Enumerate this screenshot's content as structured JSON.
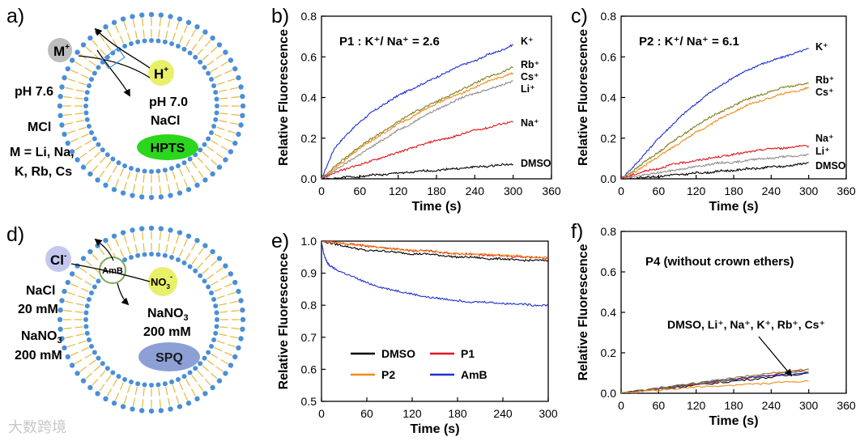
{
  "watermark": "大数跨境",
  "panel_a": {
    "letter": "a)",
    "cation": "M",
    "cation_charge": "+",
    "proton": "H",
    "proton_charge": "+",
    "outside_ph": "pH 7.6",
    "outside_salt": "MCl",
    "outside_m_line1": "M = Li, Na,",
    "outside_m_line2": "K, Rb, Cs",
    "inside_ph": "pH 7.0",
    "inside_salt": "NaCl",
    "dye": "HPTS"
  },
  "panel_d": {
    "letter": "d)",
    "anion": "Cl",
    "anion_charge": "-",
    "channel": "AmB",
    "nitrate": "NO",
    "nitrate_sub": "3",
    "nitrate_charge": "-",
    "outside_salt": "NaCl",
    "outside_conc": "20 mM",
    "outside_salt2": "NaNO",
    "outside_salt2_sub": "3",
    "outside_conc2": "200 mM",
    "inside_salt": "NaNO",
    "inside_salt_sub": "3",
    "inside_conc": "200 mM",
    "dye": "SPQ"
  },
  "chart_data": [
    {
      "panel": "b)",
      "type": "line",
      "title": "P1 : K⁺/ Na⁺ = 2.6",
      "xlabel": "Time (s)",
      "ylabel": "Relative Fluorescence",
      "xlim": [
        0,
        360
      ],
      "ylim": [
        0.0,
        0.8
      ],
      "xticks": [
        0,
        60,
        120,
        180,
        240,
        300,
        360
      ],
      "yticks": [
        0.0,
        0.2,
        0.4,
        0.6,
        0.8
      ],
      "series": [
        {
          "name": "K⁺",
          "color": "#1f2fd0",
          "x": [
            0,
            20,
            40,
            60,
            80,
            100,
            120,
            140,
            160,
            180,
            200,
            220,
            240,
            260,
            280,
            300
          ],
          "y": [
            0.0,
            0.15,
            0.22,
            0.28,
            0.33,
            0.37,
            0.41,
            0.44,
            0.47,
            0.5,
            0.53,
            0.56,
            0.58,
            0.61,
            0.63,
            0.66
          ]
        },
        {
          "name": "Rb⁺",
          "color": "#7f7f1f",
          "x": [
            0,
            20,
            40,
            60,
            80,
            100,
            120,
            140,
            160,
            180,
            200,
            220,
            240,
            260,
            280,
            300
          ],
          "y": [
            0.0,
            0.06,
            0.11,
            0.16,
            0.2,
            0.24,
            0.28,
            0.32,
            0.35,
            0.38,
            0.41,
            0.44,
            0.47,
            0.5,
            0.52,
            0.55
          ]
        },
        {
          "name": "Cs⁺",
          "color": "#f08a1a",
          "x": [
            0,
            20,
            40,
            60,
            80,
            100,
            120,
            140,
            160,
            180,
            200,
            220,
            240,
            260,
            280,
            300
          ],
          "y": [
            0.0,
            0.05,
            0.1,
            0.15,
            0.19,
            0.23,
            0.27,
            0.3,
            0.34,
            0.37,
            0.4,
            0.42,
            0.45,
            0.48,
            0.5,
            0.52
          ]
        },
        {
          "name": "Li⁺",
          "color": "#8c8c8c",
          "x": [
            0,
            20,
            40,
            60,
            80,
            100,
            120,
            140,
            160,
            180,
            200,
            220,
            240,
            260,
            280,
            300
          ],
          "y": [
            0.0,
            0.04,
            0.08,
            0.12,
            0.16,
            0.2,
            0.24,
            0.27,
            0.31,
            0.34,
            0.37,
            0.4,
            0.42,
            0.44,
            0.46,
            0.48
          ]
        },
        {
          "name": "Na⁺",
          "color": "#e0141e",
          "x": [
            0,
            20,
            40,
            60,
            80,
            100,
            120,
            140,
            160,
            180,
            200,
            220,
            240,
            260,
            280,
            300
          ],
          "y": [
            0.0,
            0.03,
            0.05,
            0.07,
            0.09,
            0.11,
            0.13,
            0.15,
            0.17,
            0.19,
            0.2,
            0.22,
            0.24,
            0.25,
            0.27,
            0.28
          ]
        },
        {
          "name": "DMSO",
          "color": "#000000",
          "x": [
            0,
            20,
            40,
            60,
            80,
            100,
            120,
            140,
            160,
            180,
            200,
            220,
            240,
            260,
            280,
            300
          ],
          "y": [
            0.0,
            0.0,
            0.01,
            0.01,
            0.02,
            0.02,
            0.03,
            0.03,
            0.04,
            0.04,
            0.05,
            0.05,
            0.06,
            0.06,
            0.07,
            0.07
          ]
        }
      ]
    },
    {
      "panel": "c)",
      "type": "line",
      "title": "P2 : K⁺/ Na⁺ = 6.1",
      "xlabel": "Time (s)",
      "ylabel": "Relative Fluorescence",
      "xlim": [
        0,
        360
      ],
      "ylim": [
        0.0,
        0.8
      ],
      "xticks": [
        0,
        60,
        120,
        180,
        240,
        300,
        360
      ],
      "yticks": [
        0.0,
        0.2,
        0.4,
        0.6,
        0.8
      ],
      "series": [
        {
          "name": "K⁺",
          "color": "#1f2fd0",
          "x": [
            0,
            20,
            40,
            60,
            80,
            100,
            120,
            140,
            160,
            180,
            200,
            220,
            240,
            260,
            280,
            300
          ],
          "y": [
            0.0,
            0.06,
            0.13,
            0.2,
            0.26,
            0.32,
            0.37,
            0.42,
            0.46,
            0.5,
            0.53,
            0.56,
            0.58,
            0.6,
            0.62,
            0.64
          ]
        },
        {
          "name": "Rb⁺",
          "color": "#7f7f1f",
          "x": [
            0,
            20,
            40,
            60,
            80,
            100,
            120,
            140,
            160,
            180,
            200,
            220,
            240,
            260,
            280,
            300
          ],
          "y": [
            0.0,
            0.04,
            0.09,
            0.13,
            0.18,
            0.22,
            0.26,
            0.3,
            0.33,
            0.36,
            0.39,
            0.41,
            0.43,
            0.45,
            0.46,
            0.47
          ]
        },
        {
          "name": "Cs⁺",
          "color": "#f08a1a",
          "x": [
            0,
            20,
            40,
            60,
            80,
            100,
            120,
            140,
            160,
            180,
            200,
            220,
            240,
            260,
            280,
            300
          ],
          "y": [
            0.0,
            0.03,
            0.07,
            0.11,
            0.15,
            0.19,
            0.23,
            0.26,
            0.3,
            0.33,
            0.36,
            0.38,
            0.4,
            0.42,
            0.43,
            0.45
          ]
        },
        {
          "name": "Na⁺",
          "color": "#e0141e",
          "x": [
            0,
            20,
            40,
            60,
            80,
            100,
            120,
            140,
            160,
            180,
            200,
            220,
            240,
            260,
            280,
            300
          ],
          "y": [
            0.0,
            0.02,
            0.04,
            0.05,
            0.07,
            0.08,
            0.09,
            0.1,
            0.11,
            0.12,
            0.13,
            0.14,
            0.15,
            0.15,
            0.16,
            0.16
          ]
        },
        {
          "name": "Li⁺",
          "color": "#8c8c8c",
          "x": [
            0,
            20,
            40,
            60,
            80,
            100,
            120,
            140,
            160,
            180,
            200,
            220,
            240,
            260,
            280,
            300
          ],
          "y": [
            0.0,
            0.01,
            0.02,
            0.03,
            0.04,
            0.05,
            0.06,
            0.07,
            0.08,
            0.08,
            0.09,
            0.1,
            0.1,
            0.11,
            0.11,
            0.12
          ]
        },
        {
          "name": "DMSO",
          "color": "#000000",
          "x": [
            0,
            20,
            40,
            60,
            80,
            100,
            120,
            140,
            160,
            180,
            200,
            220,
            240,
            260,
            280,
            300
          ],
          "y": [
            0.0,
            0.0,
            0.01,
            0.01,
            0.02,
            0.02,
            0.03,
            0.03,
            0.04,
            0.04,
            0.05,
            0.05,
            0.06,
            0.06,
            0.07,
            0.08
          ]
        }
      ]
    },
    {
      "panel": "e)",
      "type": "line",
      "xlabel": "Time (s)",
      "ylabel": "Relative Fluorescence",
      "xlim": [
        0,
        300
      ],
      "ylim": [
        0.5,
        1.0
      ],
      "xticks": [
        0,
        60,
        120,
        180,
        240,
        300
      ],
      "yticks": [
        0.5,
        0.6,
        0.7,
        0.8,
        0.9,
        1.0
      ],
      "legend": "lower-left",
      "series": [
        {
          "name": "DMSO",
          "color": "#000000",
          "x": [
            0,
            20,
            40,
            60,
            80,
            100,
            120,
            140,
            160,
            180,
            200,
            220,
            240,
            260,
            280,
            300
          ],
          "y": [
            1.0,
            0.99,
            0.98,
            0.97,
            0.97,
            0.965,
            0.96,
            0.96,
            0.955,
            0.95,
            0.95,
            0.945,
            0.945,
            0.94,
            0.94,
            0.94
          ]
        },
        {
          "name": "P1",
          "color": "#e0141e",
          "x": [
            0,
            20,
            40,
            60,
            80,
            100,
            120,
            140,
            160,
            180,
            200,
            220,
            240,
            260,
            280,
            300
          ],
          "y": [
            1.0,
            0.995,
            0.99,
            0.985,
            0.98,
            0.975,
            0.97,
            0.97,
            0.965,
            0.96,
            0.96,
            0.955,
            0.955,
            0.95,
            0.95,
            0.945
          ]
        },
        {
          "name": "P2",
          "color": "#f08a1a",
          "x": [
            0,
            20,
            40,
            60,
            80,
            100,
            120,
            140,
            160,
            180,
            200,
            220,
            240,
            260,
            280,
            300
          ],
          "y": [
            1.0,
            0.995,
            0.99,
            0.985,
            0.98,
            0.975,
            0.97,
            0.97,
            0.965,
            0.96,
            0.96,
            0.96,
            0.955,
            0.955,
            0.95,
            0.95
          ]
        },
        {
          "name": "AmB",
          "color": "#1f2fd0",
          "x": [
            0,
            3,
            6,
            10,
            20,
            40,
            60,
            80,
            100,
            120,
            140,
            160,
            180,
            200,
            220,
            240,
            260,
            280,
            300
          ],
          "y": [
            1.0,
            0.96,
            0.94,
            0.925,
            0.91,
            0.89,
            0.87,
            0.855,
            0.845,
            0.835,
            0.825,
            0.82,
            0.815,
            0.81,
            0.81,
            0.805,
            0.805,
            0.8,
            0.8
          ]
        }
      ]
    },
    {
      "panel": "f)",
      "type": "line",
      "title": "P4 (without crown ethers)",
      "annotation": "DMSO, Li⁺, Na⁺, K⁺, Rb⁺, Cs⁺",
      "xlabel": "Time (s)",
      "ylabel": "Relative Fluorescence",
      "xlim": [
        0,
        360
      ],
      "ylim": [
        0.0,
        0.8
      ],
      "xticks": [
        0,
        60,
        120,
        180,
        240,
        300,
        360
      ],
      "yticks": [
        0.0,
        0.2,
        0.4,
        0.6,
        0.8
      ],
      "series": [
        {
          "color": "#000000",
          "x": [
            0,
            60,
            120,
            180,
            240,
            300
          ],
          "y": [
            0.0,
            0.02,
            0.04,
            0.06,
            0.08,
            0.1
          ]
        },
        {
          "color": "#8c8c8c",
          "x": [
            0,
            60,
            120,
            180,
            240,
            300
          ],
          "y": [
            0.0,
            0.02,
            0.045,
            0.065,
            0.09,
            0.11
          ]
        },
        {
          "color": "#e0141e",
          "x": [
            0,
            60,
            120,
            180,
            240,
            300
          ],
          "y": [
            0.0,
            0.025,
            0.045,
            0.07,
            0.09,
            0.12
          ]
        },
        {
          "color": "#1f2fd0",
          "x": [
            0,
            60,
            120,
            180,
            240,
            300
          ],
          "y": [
            0.0,
            0.025,
            0.05,
            0.07,
            0.09,
            0.1
          ]
        },
        {
          "color": "#7f7f1f",
          "x": [
            0,
            60,
            120,
            180,
            240,
            300
          ],
          "y": [
            0.0,
            0.025,
            0.05,
            0.075,
            0.1,
            0.12
          ]
        },
        {
          "color": "#f08a1a",
          "x": [
            0,
            60,
            120,
            180,
            240,
            300
          ],
          "y": [
            0.0,
            0.015,
            0.03,
            0.04,
            0.05,
            0.06
          ]
        }
      ]
    }
  ]
}
